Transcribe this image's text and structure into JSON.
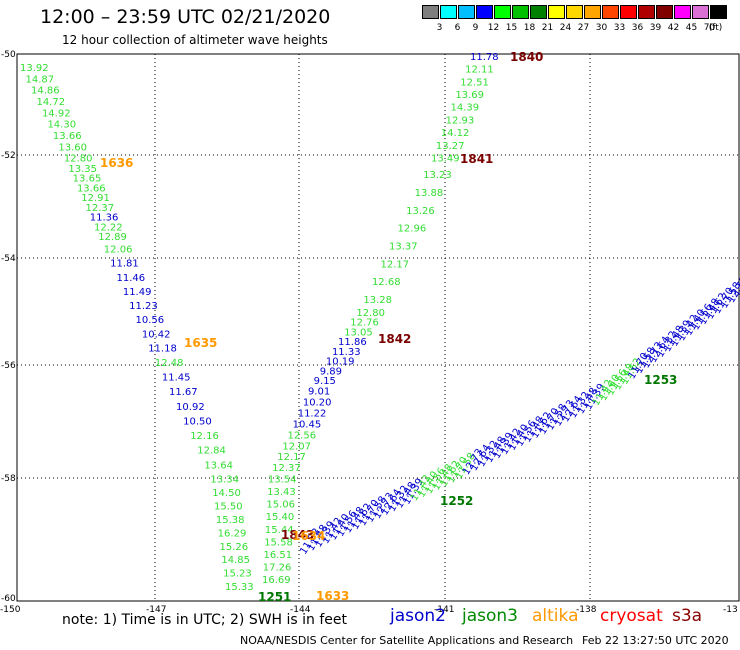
{
  "header": {
    "title": "12:00 – 23:59 UTC 02/21/2020",
    "subtitle": "12 hour collection of altimeter wave heights"
  },
  "color_scale": {
    "labels": [
      "3",
      "6",
      "9",
      "12",
      "15",
      "18",
      "21",
      "24",
      "27",
      "30",
      "33",
      "36",
      "39",
      "42",
      "45",
      "70",
      "(ft)"
    ],
    "colors": [
      "#7f7f7f",
      "#00ffff",
      "#00bfff",
      "#0000ff",
      "#00ff00",
      "#00c000",
      "#008000",
      "#ffff00",
      "#ffd700",
      "#ffa500",
      "#ff4500",
      "#ff0000",
      "#b00000",
      "#800000",
      "#ff00ff",
      "#da70d6",
      "#000000"
    ]
  },
  "map": {
    "lat_labels": [
      "-50",
      "-52",
      "-54",
      "-56",
      "-58",
      "-60"
    ],
    "lon_labels": [
      "-150",
      "-147",
      "-144",
      "-141",
      "-138",
      "-13"
    ],
    "left_track_values": [
      "13.92",
      "14.87",
      "14.86",
      "14.72",
      "14.92",
      "14.30",
      "13.66",
      "13.60",
      "12.80",
      "13.35",
      "13.65",
      "13.66",
      "12.91",
      "12.37",
      "11.36",
      "12.22",
      "12.89",
      "12.06",
      "11.81",
      "11.46",
      "11.49",
      "11.23",
      "10.56",
      "10.42",
      "11.18",
      "12.48",
      "11.45",
      "11.67",
      "10.92",
      "10.50",
      "12.16",
      "12.84",
      "13.64",
      "13.34",
      "14.50",
      "15.50",
      "15.38",
      "16.29",
      "15.26",
      "14.85",
      "15.23",
      "15.33"
    ],
    "left_track_colors": [
      "#33dd33",
      "#33dd33",
      "#33dd33",
      "#33dd33",
      "#33dd33",
      "#33dd33",
      "#33dd33",
      "#33dd33",
      "#33dd33",
      "#33dd33",
      "#33dd33",
      "#33dd33",
      "#33dd33",
      "#33dd33",
      "#0000cc",
      "#33dd33",
      "#33dd33",
      "#33dd33",
      "#0000cc",
      "#0000cc",
      "#0000cc",
      "#0000cc",
      "#0000cc",
      "#0000cc",
      "#0000cc",
      "#33dd33",
      "#0000cc",
      "#0000cc",
      "#0000cc",
      "#0000cc",
      "#33dd33",
      "#33dd33",
      "#33dd33",
      "#33dd33",
      "#33dd33",
      "#33dd33",
      "#33dd33",
      "#33dd33",
      "#33dd33",
      "#33dd33",
      "#33dd33",
      "#33dd33"
    ],
    "right_track_values": [
      "11.78",
      "12.11",
      "12.51",
      "13.69",
      "14.39",
      "12.93",
      "14.12",
      "13.27",
      "13.49",
      "13.23",
      "13.88",
      "13.26",
      "12.96",
      "13.37",
      "12.17",
      "12.68",
      "13.28",
      "12.80",
      "12.76",
      "13.05",
      "11.86",
      "11.33",
      "10.19",
      "9.89",
      "9.15",
      "9.01",
      "10.20",
      "11.22",
      "10.45",
      "12.56",
      "12.07",
      "12.17",
      "12.37",
      "13.54",
      "13.43",
      "15.06",
      "15.40",
      "15.44",
      "15.58",
      "16.51",
      "17.26",
      "16.69"
    ],
    "right_track_colors": [
      "#0000cc",
      "#33dd33",
      "#33dd33",
      "#33dd33",
      "#33dd33",
      "#33dd33",
      "#33dd33",
      "#33dd33",
      "#33dd33",
      "#33dd33",
      "#33dd33",
      "#33dd33",
      "#33dd33",
      "#33dd33",
      "#33dd33",
      "#33dd33",
      "#33dd33",
      "#33dd33",
      "#33dd33",
      "#33dd33",
      "#0000cc",
      "#0000cc",
      "#0000cc",
      "#0000cc",
      "#0000cc",
      "#0000cc",
      "#0000cc",
      "#0000cc",
      "#0000cc",
      "#33dd33",
      "#33dd33",
      "#33dd33",
      "#33dd33",
      "#33dd33",
      "#33dd33",
      "#33dd33",
      "#33dd33",
      "#33dd33",
      "#33dd33",
      "#33dd33",
      "#33dd33",
      "#33dd33"
    ],
    "diag_track_values": [
      "11.32",
      "11.48",
      "11.39",
      "11.42",
      "11.40",
      "11.56",
      "11.48",
      "11.62",
      "11.70",
      "11.58",
      "12.73",
      "12.64"
    ],
    "time_labels": [
      {
        "text": "1840",
        "color": "#7a0000"
      },
      {
        "text": "1841",
        "color": "#7a0000"
      },
      {
        "text": "1842",
        "color": "#7a0000"
      },
      {
        "text": "1843",
        "color": "#7a0000"
      },
      {
        "text": "1636",
        "color": "#ff9900"
      },
      {
        "text": "1635",
        "color": "#ff9900"
      },
      {
        "text": "1633",
        "color": "#ff9900"
      },
      {
        "text": "1634",
        "color": "#ff9900"
      },
      {
        "text": "1253",
        "color": "#007700"
      },
      {
        "text": "1252",
        "color": "#007700"
      },
      {
        "text": "1251",
        "color": "#007700"
      }
    ]
  },
  "footer": {
    "note": "note: 1) Time is in UTC; 2) SWH is in feet",
    "satellites": [
      {
        "name": "jason2",
        "color": "#0000cc"
      },
      {
        "name": "jason3",
        "color": "#008800"
      },
      {
        "name": "altika",
        "color": "#ff9900"
      },
      {
        "name": "cryosat",
        "color": "#ff0000"
      },
      {
        "name": "s3a",
        "color": "#8b0000"
      }
    ],
    "credit": "NOAA/NESDIS Center for Satellite Applications and Research",
    "timestamp": "Feb 22 13:27:50 UTC 2020"
  }
}
